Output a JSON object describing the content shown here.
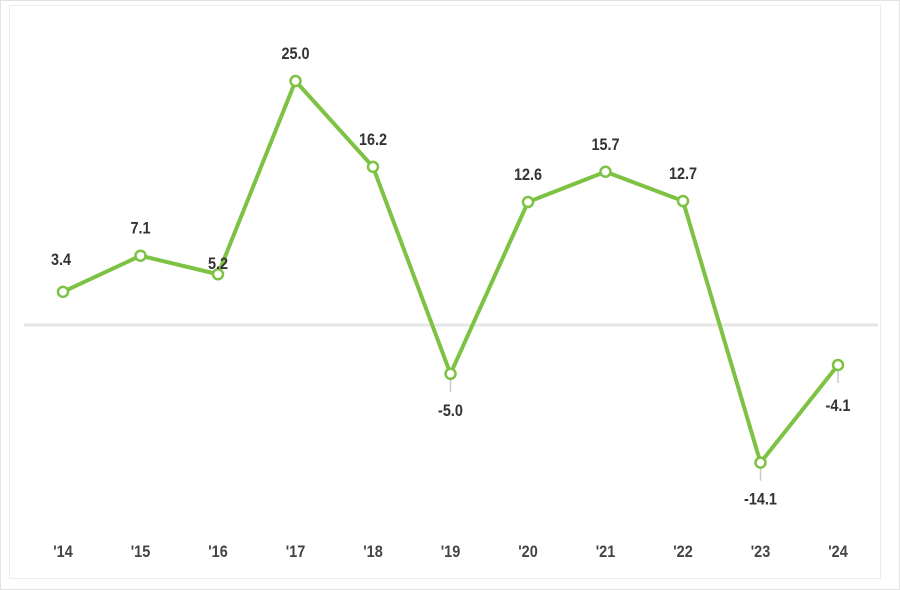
{
  "chart_data": {
    "type": "line",
    "categories": [
      "'14",
      "'15",
      "'16",
      "'17",
      "'18",
      "'19",
      "'20",
      "'21",
      "'22",
      "'23",
      "'24"
    ],
    "values": [
      3.4,
      7.1,
      5.2,
      25.0,
      16.2,
      -5.0,
      12.6,
      15.7,
      12.7,
      -14.1,
      -4.1
    ],
    "data_labels": [
      "3.4",
      "7.1",
      "5.2",
      "25.0",
      "16.2",
      "-5.0",
      "12.6",
      "15.7",
      "12.7",
      "-14.1",
      "-4.1"
    ],
    "title": "",
    "xlabel": "",
    "ylabel": "",
    "grid": false,
    "zero_line": true,
    "colors": {
      "line": "#7dc243",
      "marker_fill": "#ffffff",
      "zero_line": "#e6e6e6",
      "label": "#333333"
    }
  }
}
